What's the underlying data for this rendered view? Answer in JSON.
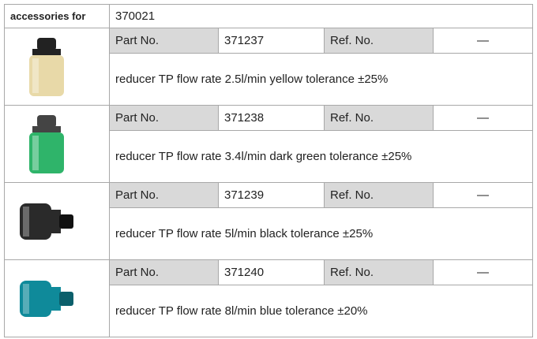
{
  "header": {
    "label": "accessories for",
    "value": "370021"
  },
  "items": [
    {
      "part_label": "Part No.",
      "part_no": "371237",
      "ref_label": "Ref. No.",
      "ref_no": "—",
      "description": "reducer  TP flow rate 2.5l/min yellow tolerance ±25%"
    },
    {
      "part_label": "Part No.",
      "part_no": "371238",
      "ref_label": "Ref. No.",
      "ref_no": "—",
      "description": "reducer  TP flow rate 3.4l/min dark green tolerance ±25%"
    },
    {
      "part_label": "Part No.",
      "part_no": "371239",
      "ref_label": "Ref. No.",
      "ref_no": "—",
      "description": "reducer  TP flow rate 5l/min black tolerance ±25%"
    },
    {
      "part_label": "Part No.",
      "part_no": "371240",
      "ref_label": "Ref. No.",
      "ref_no": "—",
      "description": "reducer  TP flow rate 8l/min blue tolerance ±20%"
    }
  ]
}
